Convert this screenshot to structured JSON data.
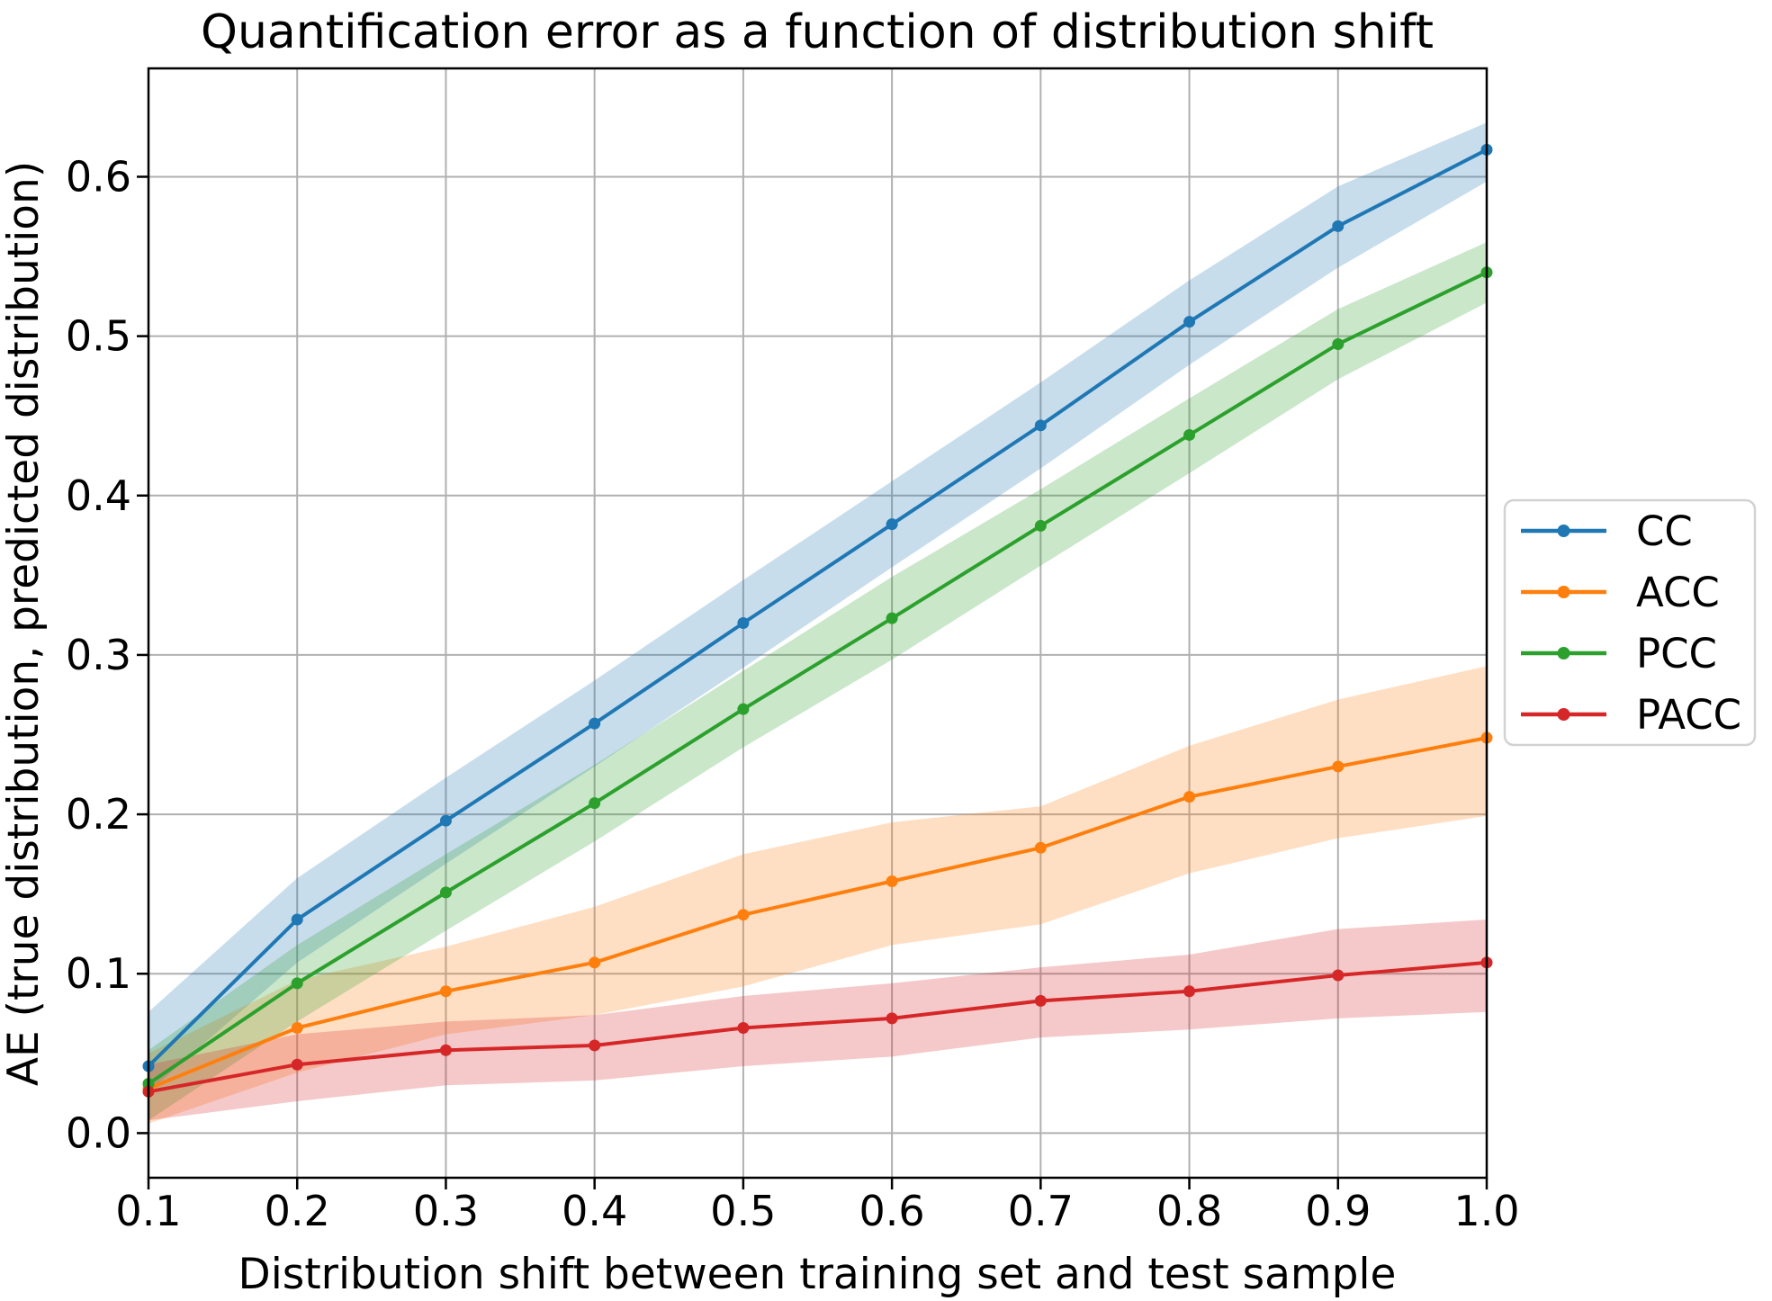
{
  "chart_data": {
    "type": "line",
    "title": "Quantification error as a function of distribution shift",
    "xlabel": "Distribution shift between training set and test sample",
    "ylabel": "AE (true distribution, predicted distribution)",
    "x": [
      0.1,
      0.2,
      0.3,
      0.4,
      0.5,
      0.6,
      0.7,
      0.8,
      0.9,
      1.0
    ],
    "x_tick_labels": [
      "0.1",
      "0.2",
      "0.3",
      "0.4",
      "0.5",
      "0.6",
      "0.7",
      "0.8",
      "0.9",
      "1.0"
    ],
    "y_ticks": [
      0.0,
      0.1,
      0.2,
      0.3,
      0.4,
      0.5,
      0.6
    ],
    "y_tick_labels": [
      "0.0",
      "0.1",
      "0.2",
      "0.3",
      "0.4",
      "0.5",
      "0.6"
    ],
    "xlim": [
      0.1,
      1.0
    ],
    "ylim": [
      -0.028,
      0.668
    ],
    "grid": true,
    "grid_color": "#b0b0b0",
    "spine_color": "#000000",
    "band_alpha": 0.25,
    "legend_position": "right-outside",
    "series": [
      {
        "name": "CC",
        "color": "#1f77b4",
        "values": [
          0.042,
          0.134,
          0.196,
          0.257,
          0.32,
          0.382,
          0.444,
          0.509,
          0.569,
          0.617
        ],
        "lower": [
          0.026,
          0.107,
          0.169,
          0.23,
          0.292,
          0.355,
          0.417,
          0.482,
          0.543,
          0.597
        ],
        "upper": [
          0.076,
          0.16,
          0.223,
          0.284,
          0.347,
          0.409,
          0.471,
          0.535,
          0.594,
          0.634
        ]
      },
      {
        "name": "ACC",
        "color": "#ff7f0e",
        "values": [
          0.028,
          0.066,
          0.089,
          0.107,
          0.137,
          0.158,
          0.179,
          0.211,
          0.23,
          0.248
        ],
        "lower": [
          0.006,
          0.038,
          0.062,
          0.074,
          0.092,
          0.118,
          0.131,
          0.163,
          0.185,
          0.199
        ],
        "upper": [
          0.05,
          0.096,
          0.117,
          0.142,
          0.175,
          0.195,
          0.205,
          0.243,
          0.272,
          0.293
        ]
      },
      {
        "name": "PCC",
        "color": "#2ca02c",
        "values": [
          0.031,
          0.094,
          0.151,
          0.207,
          0.266,
          0.323,
          0.381,
          0.438,
          0.495,
          0.54
        ],
        "lower": [
          0.008,
          0.07,
          0.127,
          0.183,
          0.242,
          0.297,
          0.356,
          0.414,
          0.473,
          0.521
        ],
        "upper": [
          0.052,
          0.118,
          0.175,
          0.231,
          0.29,
          0.349,
          0.404,
          0.461,
          0.517,
          0.559
        ]
      },
      {
        "name": "PACC",
        "color": "#d62728",
        "values": [
          0.026,
          0.043,
          0.052,
          0.055,
          0.066,
          0.072,
          0.083,
          0.089,
          0.099,
          0.107
        ],
        "lower": [
          0.008,
          0.02,
          0.03,
          0.033,
          0.042,
          0.048,
          0.06,
          0.065,
          0.072,
          0.076
        ],
        "upper": [
          0.043,
          0.062,
          0.07,
          0.074,
          0.086,
          0.094,
          0.104,
          0.112,
          0.128,
          0.134
        ]
      }
    ]
  }
}
